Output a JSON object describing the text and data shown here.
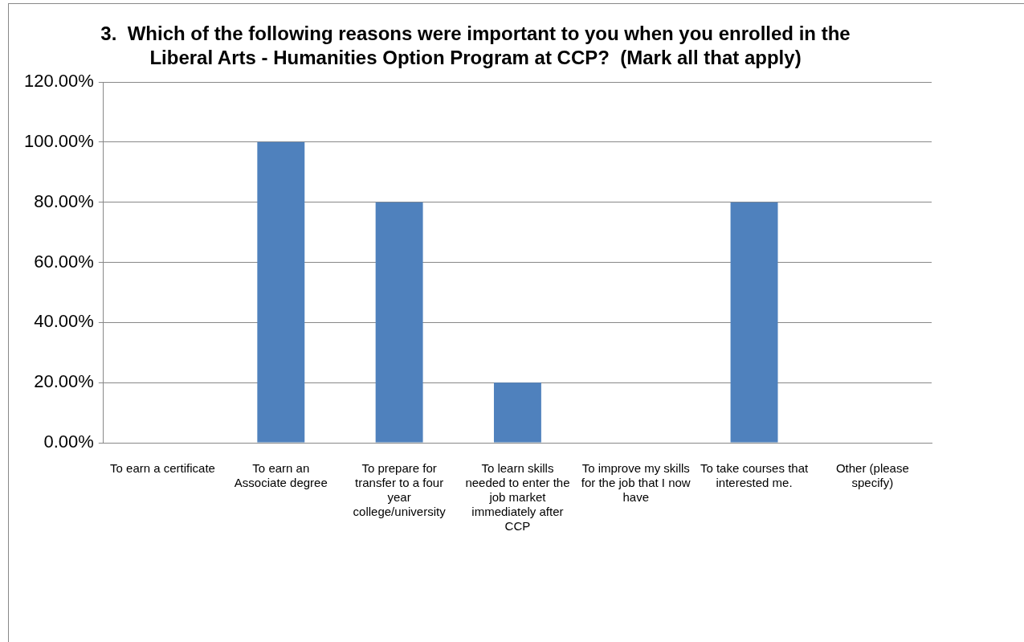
{
  "chart_data": {
    "type": "bar",
    "title": "3.  Which of the following reasons were important to you when you enrolled in the Liberal Arts - Humanities Option Program at CCP?  (Mark all that apply)",
    "categories": [
      "To earn a certificate",
      "To earn an Associate degree",
      "To prepare for transfer to a four year college/university",
      "To learn skills needed to enter the job market immediately after CCP",
      "To improve my skills for the job that I now have",
      "To take courses that interested me.",
      "Other (please specify)"
    ],
    "values": [
      0,
      100,
      80,
      20,
      0,
      80,
      0
    ],
    "color": "#4f81bd",
    "ylim": [
      0,
      120
    ],
    "yticks": [
      {
        "value": 0,
        "label": "0.00%"
      },
      {
        "value": 20,
        "label": "20.00%"
      },
      {
        "value": 40,
        "label": "40.00%"
      },
      {
        "value": 60,
        "label": "60.00%"
      },
      {
        "value": 80,
        "label": "80.00%"
      },
      {
        "value": 100,
        "label": "100.00%"
      },
      {
        "value": 120,
        "label": "120.00%"
      }
    ],
    "grid": "y"
  }
}
